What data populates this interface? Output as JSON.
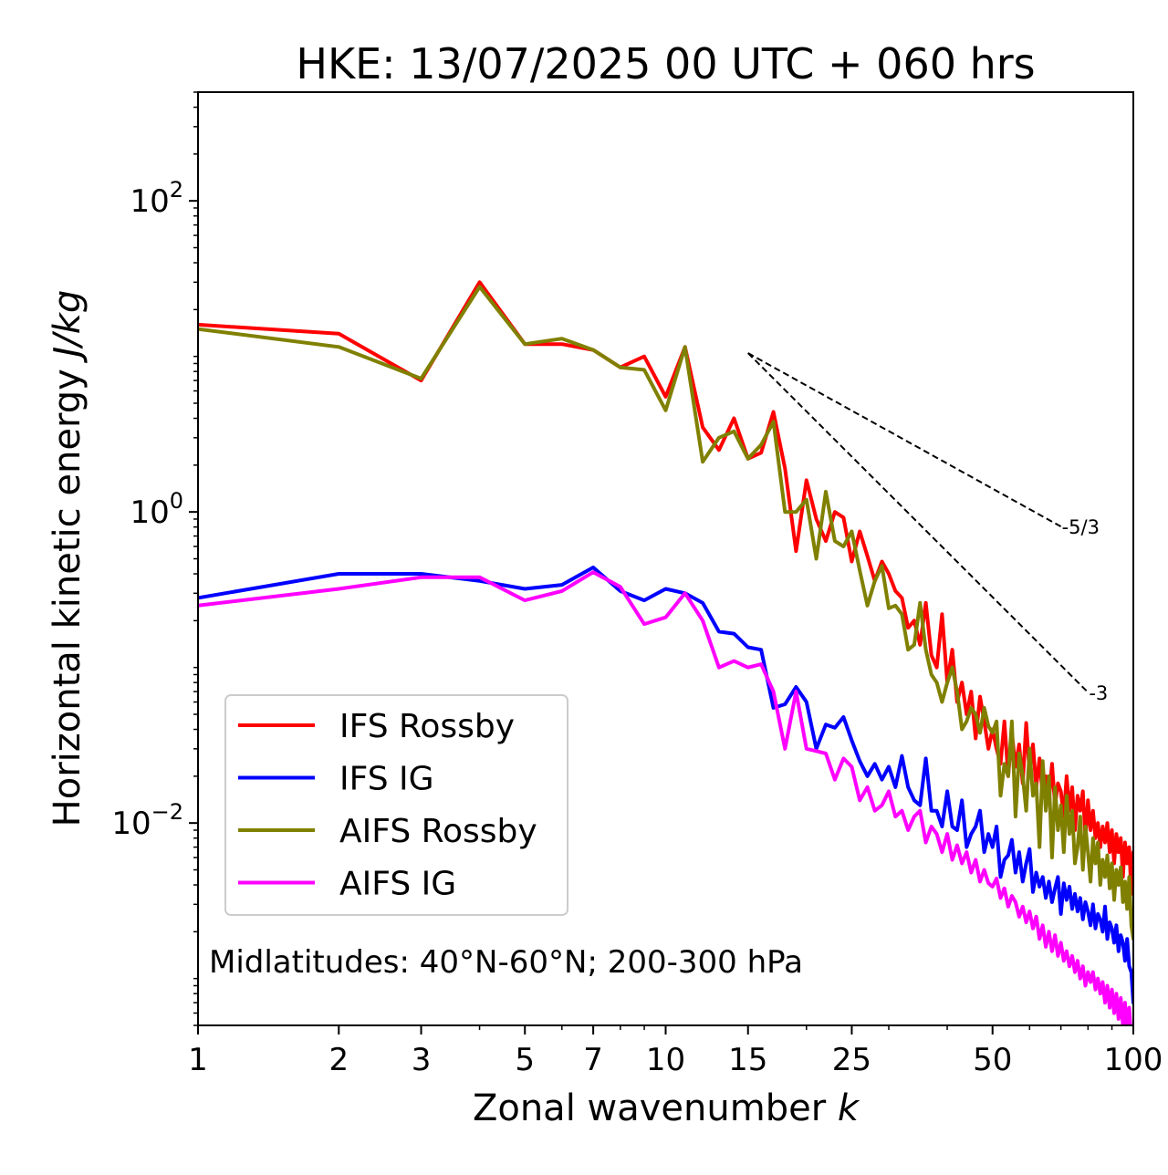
{
  "chart_data": {
    "type": "line",
    "title": "HKE: 13/07/2025 00 UTC + 060 hrs",
    "xlabel": "Zonal wavenumber",
    "xlabel_var": "k",
    "ylabel": "Horizontal kinetic energy",
    "ylabel_unit": "J/kg",
    "xscale": "log",
    "yscale": "log",
    "xlim": [
      1,
      100
    ],
    "ylim": [
      0.0005,
      500
    ],
    "xticks": [
      1,
      2,
      3,
      5,
      7,
      10,
      15,
      25,
      50,
      100
    ],
    "xtick_labels": [
      "1",
      "2",
      "3",
      "5",
      "7",
      "10",
      "15",
      "25",
      "50",
      "100"
    ],
    "yticks": [
      0.01,
      1,
      100
    ],
    "ytick_labels": [
      {
        "base": "10",
        "exp": "−2"
      },
      {
        "base": "10",
        "exp": "0"
      },
      {
        "base": "10",
        "exp": "2"
      }
    ],
    "grid": false,
    "legend": "lower-left",
    "annotation": "Midlatitudes: 40°N-60°N; 200-300 hPa",
    "reference_lines": [
      {
        "label": "-5/3",
        "slope": -1.6667,
        "x0": 15,
        "y0": 10.5,
        "x1": 70,
        "color": "#000000"
      },
      {
        "label": "-3",
        "slope": -3,
        "x0": 15,
        "y0": 10.5,
        "x1": 80,
        "color": "#000000"
      }
    ],
    "series": [
      {
        "name": "IFS Rossby",
        "color": "#ff0000",
        "x": [
          1,
          2,
          3,
          4,
          5,
          6,
          7,
          8,
          9,
          10,
          11,
          12,
          13,
          14,
          15,
          16,
          17,
          18,
          19,
          20,
          21,
          22,
          23,
          24,
          25,
          26,
          27,
          28,
          29,
          30,
          31,
          32,
          33,
          34,
          35,
          36,
          37,
          38,
          39,
          40,
          41,
          42,
          43,
          44,
          45,
          46,
          47,
          48,
          49,
          50,
          51,
          52,
          53,
          54,
          55,
          56,
          57,
          58,
          59,
          60,
          61,
          62,
          63,
          64,
          65,
          66,
          67,
          68,
          69,
          70,
          71,
          72,
          73,
          74,
          75,
          76,
          77,
          78,
          79,
          80,
          81,
          82,
          83,
          84,
          85,
          86,
          87,
          88,
          89,
          90,
          91,
          92,
          93,
          94,
          95,
          96,
          97,
          98,
          99,
          100
        ],
        "y": [
          16,
          14,
          7,
          30,
          12,
          12,
          11,
          8.5,
          10,
          5.5,
          11.5,
          3.5,
          2.5,
          4,
          2.2,
          2.4,
          4.4,
          1.9,
          0.56,
          1.6,
          0.9,
          0.65,
          1.0,
          0.92,
          0.48,
          0.75,
          0.52,
          0.36,
          0.48,
          0.4,
          0.31,
          0.28,
          0.18,
          0.2,
          0.14,
          0.26,
          0.12,
          0.1,
          0.22,
          0.08,
          0.13,
          0.06,
          0.08,
          0.05,
          0.07,
          0.035,
          0.065,
          0.045,
          0.03,
          0.04,
          0.03,
          0.024,
          0.045,
          0.02,
          0.038,
          0.023,
          0.032,
          0.018,
          0.044,
          0.021,
          0.032,
          0.017,
          0.026,
          0.015,
          0.02,
          0.014,
          0.024,
          0.013,
          0.018,
          0.016,
          0.011,
          0.02,
          0.012,
          0.017,
          0.009,
          0.015,
          0.012,
          0.016,
          0.008,
          0.014,
          0.009,
          0.012,
          0.008,
          0.01,
          0.007,
          0.0095,
          0.0075,
          0.01,
          0.0065,
          0.009,
          0.0055,
          0.0085,
          0.0065,
          0.008,
          0.0045,
          0.0075,
          0.0055,
          0.007,
          0.0035,
          0.0065
        ]
      },
      {
        "name": "IFS IG",
        "color": "#0000ff",
        "x": [
          1,
          2,
          3,
          4,
          5,
          6,
          7,
          8,
          9,
          10,
          11,
          12,
          13,
          14,
          15,
          16,
          17,
          18,
          19,
          20,
          21,
          22,
          23,
          24,
          25,
          26,
          27,
          28,
          29,
          30,
          31,
          32,
          33,
          34,
          35,
          36,
          37,
          38,
          39,
          40,
          41,
          42,
          43,
          44,
          45,
          46,
          47,
          48,
          49,
          50,
          51,
          52,
          53,
          54,
          55,
          56,
          57,
          58,
          59,
          60,
          61,
          62,
          63,
          64,
          65,
          66,
          67,
          68,
          69,
          70,
          71,
          72,
          73,
          74,
          75,
          76,
          77,
          78,
          79,
          80,
          81,
          82,
          83,
          84,
          85,
          86,
          87,
          88,
          89,
          90,
          91,
          92,
          93,
          94,
          95,
          96,
          97,
          98,
          99,
          100
        ],
        "y": [
          0.28,
          0.4,
          0.4,
          0.36,
          0.32,
          0.34,
          0.44,
          0.31,
          0.27,
          0.32,
          0.3,
          0.26,
          0.17,
          0.165,
          0.135,
          0.13,
          0.055,
          0.058,
          0.075,
          0.06,
          0.03,
          0.043,
          0.041,
          0.048,
          0.034,
          0.025,
          0.02,
          0.024,
          0.019,
          0.023,
          0.017,
          0.027,
          0.017,
          0.014,
          0.013,
          0.026,
          0.012,
          0.012,
          0.0095,
          0.016,
          0.0095,
          0.009,
          0.014,
          0.007,
          0.0085,
          0.0095,
          0.012,
          0.0065,
          0.0085,
          0.007,
          0.0095,
          0.0045,
          0.0058,
          0.0062,
          0.0078,
          0.0048,
          0.0065,
          0.0042,
          0.0055,
          0.0068,
          0.0036,
          0.0048,
          0.0039,
          0.0045,
          0.0033,
          0.0042,
          0.0031,
          0.0038,
          0.0045,
          0.0026,
          0.0041,
          0.0032,
          0.0039,
          0.0028,
          0.0035,
          0.0027,
          0.0033,
          0.0024,
          0.0031,
          0.0027,
          0.0022,
          0.003,
          0.0021,
          0.0026,
          0.0024,
          0.002,
          0.0029,
          0.0018,
          0.0023,
          0.0021,
          0.0017,
          0.0022,
          0.0015,
          0.0019,
          0.0017,
          0.0013,
          0.0018,
          0.0012,
          0.0011,
          0.0007
        ]
      },
      {
        "name": "AIFS Rossby",
        "color": "#808000",
        "x": [
          1,
          2,
          3,
          4,
          5,
          6,
          7,
          8,
          9,
          10,
          11,
          12,
          13,
          14,
          15,
          16,
          17,
          18,
          19,
          20,
          21,
          22,
          23,
          24,
          25,
          26,
          27,
          28,
          29,
          30,
          31,
          32,
          33,
          34,
          35,
          36,
          37,
          38,
          39,
          40,
          41,
          42,
          43,
          44,
          45,
          46,
          47,
          48,
          49,
          50,
          51,
          52,
          53,
          54,
          55,
          56,
          57,
          58,
          59,
          60,
          61,
          62,
          63,
          64,
          65,
          66,
          67,
          68,
          69,
          70,
          71,
          72,
          73,
          74,
          75,
          76,
          77,
          78,
          79,
          80,
          81,
          82,
          83,
          84,
          85,
          86,
          87,
          88,
          89,
          90,
          91,
          92,
          93,
          94,
          95,
          96,
          97,
          98,
          99,
          100
        ],
        "y": [
          15,
          11.5,
          7.2,
          28,
          12,
          13,
          11,
          8.5,
          8.2,
          4.5,
          11.5,
          2.1,
          3,
          3.3,
          2.2,
          2.7,
          3.8,
          1.0,
          1.0,
          1.2,
          0.5,
          1.35,
          0.65,
          0.6,
          0.75,
          0.42,
          0.25,
          0.36,
          0.45,
          0.24,
          0.25,
          0.22,
          0.13,
          0.14,
          0.26,
          0.13,
          0.09,
          0.08,
          0.06,
          0.08,
          0.1,
          0.07,
          0.04,
          0.045,
          0.055,
          0.05,
          0.038,
          0.055,
          0.042,
          0.038,
          0.045,
          0.015,
          0.024,
          0.02,
          0.045,
          0.011,
          0.028,
          0.02,
          0.012,
          0.03,
          0.015,
          0.018,
          0.007,
          0.025,
          0.012,
          0.02,
          0.006,
          0.017,
          0.009,
          0.013,
          0.0065,
          0.015,
          0.0085,
          0.012,
          0.0055,
          0.007,
          0.011,
          0.005,
          0.0095,
          0.0065,
          0.0042,
          0.008,
          0.0055,
          0.0075,
          0.004,
          0.0058,
          0.0045,
          0.0062,
          0.0038,
          0.0055,
          0.0032,
          0.005,
          0.004,
          0.0052,
          0.0031,
          0.0042,
          0.0028,
          0.0045,
          0.0022,
          0.0018
        ]
      },
      {
        "name": "AIFS IG",
        "color": "#ff00ff",
        "x": [
          1,
          2,
          3,
          4,
          5,
          6,
          7,
          8,
          9,
          10,
          11,
          12,
          13,
          14,
          15,
          16,
          17,
          18,
          19,
          20,
          21,
          22,
          23,
          24,
          25,
          26,
          27,
          28,
          29,
          30,
          31,
          32,
          33,
          34,
          35,
          36,
          37,
          38,
          39,
          40,
          41,
          42,
          43,
          44,
          45,
          46,
          47,
          48,
          49,
          50,
          51,
          52,
          53,
          54,
          55,
          56,
          57,
          58,
          59,
          60,
          61,
          62,
          63,
          64,
          65,
          66,
          67,
          68,
          69,
          70,
          71,
          72,
          73,
          74,
          75,
          76,
          77,
          78,
          79,
          80,
          81,
          82,
          83,
          84,
          85,
          86,
          87,
          88,
          89,
          90,
          91,
          92,
          93,
          94,
          95,
          96,
          97,
          98,
          99,
          100
        ],
        "y": [
          0.25,
          0.32,
          0.38,
          0.38,
          0.27,
          0.31,
          0.41,
          0.33,
          0.19,
          0.21,
          0.3,
          0.2,
          0.1,
          0.11,
          0.1,
          0.105,
          0.07,
          0.03,
          0.07,
          0.03,
          0.029,
          0.028,
          0.019,
          0.026,
          0.023,
          0.014,
          0.017,
          0.012,
          0.013,
          0.016,
          0.011,
          0.012,
          0.009,
          0.011,
          0.012,
          0.0075,
          0.0095,
          0.0085,
          0.0065,
          0.0085,
          0.0058,
          0.0072,
          0.0055,
          0.0065,
          0.0048,
          0.0058,
          0.0042,
          0.005,
          0.0041,
          0.0039,
          0.0044,
          0.0033,
          0.0038,
          0.0029,
          0.0034,
          0.0031,
          0.0025,
          0.0029,
          0.0023,
          0.0027,
          0.0021,
          0.0025,
          0.0018,
          0.0022,
          0.0016,
          0.002,
          0.0015,
          0.0019,
          0.0014,
          0.0017,
          0.0013,
          0.0015,
          0.0012,
          0.0014,
          0.0011,
          0.0013,
          0.001,
          0.0012,
          0.0009,
          0.0011,
          0.00095,
          0.0011,
          0.00085,
          0.001,
          0.0008,
          0.00095,
          0.0007,
          0.0009,
          0.00065,
          0.00085,
          0.0006,
          0.0008,
          0.00055,
          0.00075,
          0.0005,
          0.0007,
          0.00045,
          0.00065,
          0.0004,
          0.00035
        ]
      }
    ]
  }
}
